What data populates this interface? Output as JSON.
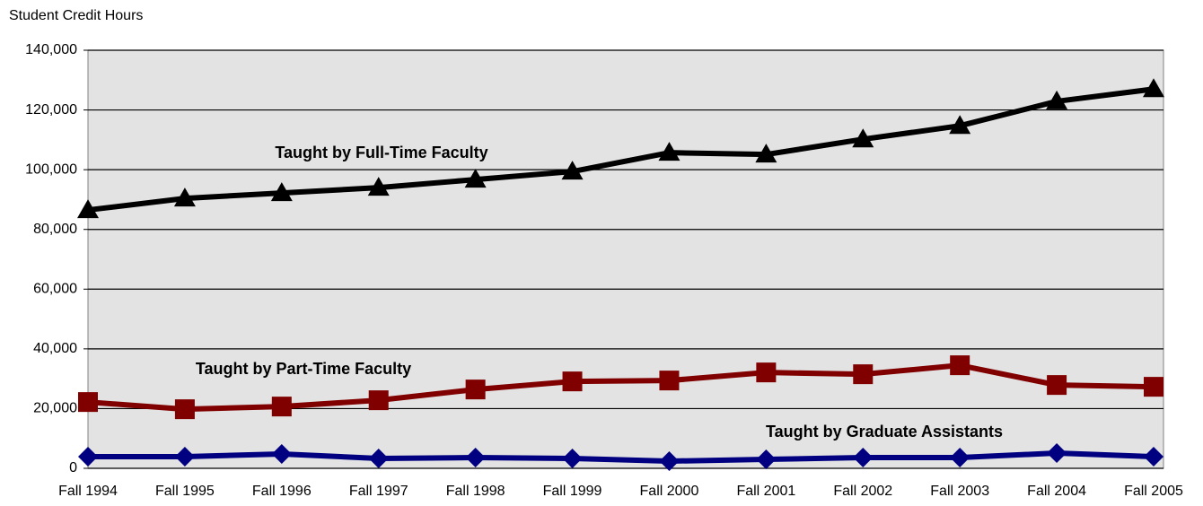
{
  "chart_data": {
    "type": "line",
    "y_label": "Student Credit Hours",
    "categories": [
      "Fall 1994",
      "Fall 1995",
      "Fall 1996",
      "Fall 1997",
      "Fall 1998",
      "Fall 1999",
      "Fall 2000",
      "Fall 2001",
      "Fall 2002",
      "Fall 2003",
      "Fall 2004",
      "Fall 2005"
    ],
    "series": [
      {
        "name": "Taught by Full-Time Faculty",
        "color": "#000000",
        "marker": "triangle",
        "values": [
          86500,
          90400,
          92200,
          94000,
          96700,
          99400,
          105700,
          105100,
          110200,
          114700,
          122900,
          127000
        ]
      },
      {
        "name": "Taught by Part-Time Faculty",
        "color": "#800000",
        "marker": "square",
        "values": [
          22200,
          19800,
          20700,
          22800,
          26400,
          29100,
          29400,
          32100,
          31500,
          34500,
          27900,
          27300
        ]
      },
      {
        "name": "Taught by Graduate Assistants",
        "color": "#000080",
        "marker": "diamond",
        "values": [
          3900,
          3900,
          4800,
          3300,
          3600,
          3300,
          2400,
          3000,
          3600,
          3600,
          5100,
          3900
        ]
      }
    ],
    "ylim": [
      0,
      140000
    ],
    "yticks": [
      0,
      {
        "value": 20000,
        "label": "20,000"
      },
      {
        "value": 40000,
        "label": "40,000"
      },
      {
        "value": 60000,
        "label": "60,000"
      },
      {
        "value": 80000,
        "label": "80,000"
      },
      {
        "value": 100000,
        "label": "100,000"
      },
      {
        "value": 120000,
        "label": "120,000"
      },
      {
        "value": 140000,
        "label": "140,000"
      }
    ],
    "grid": true,
    "plot_background": "#e3e3e3"
  }
}
